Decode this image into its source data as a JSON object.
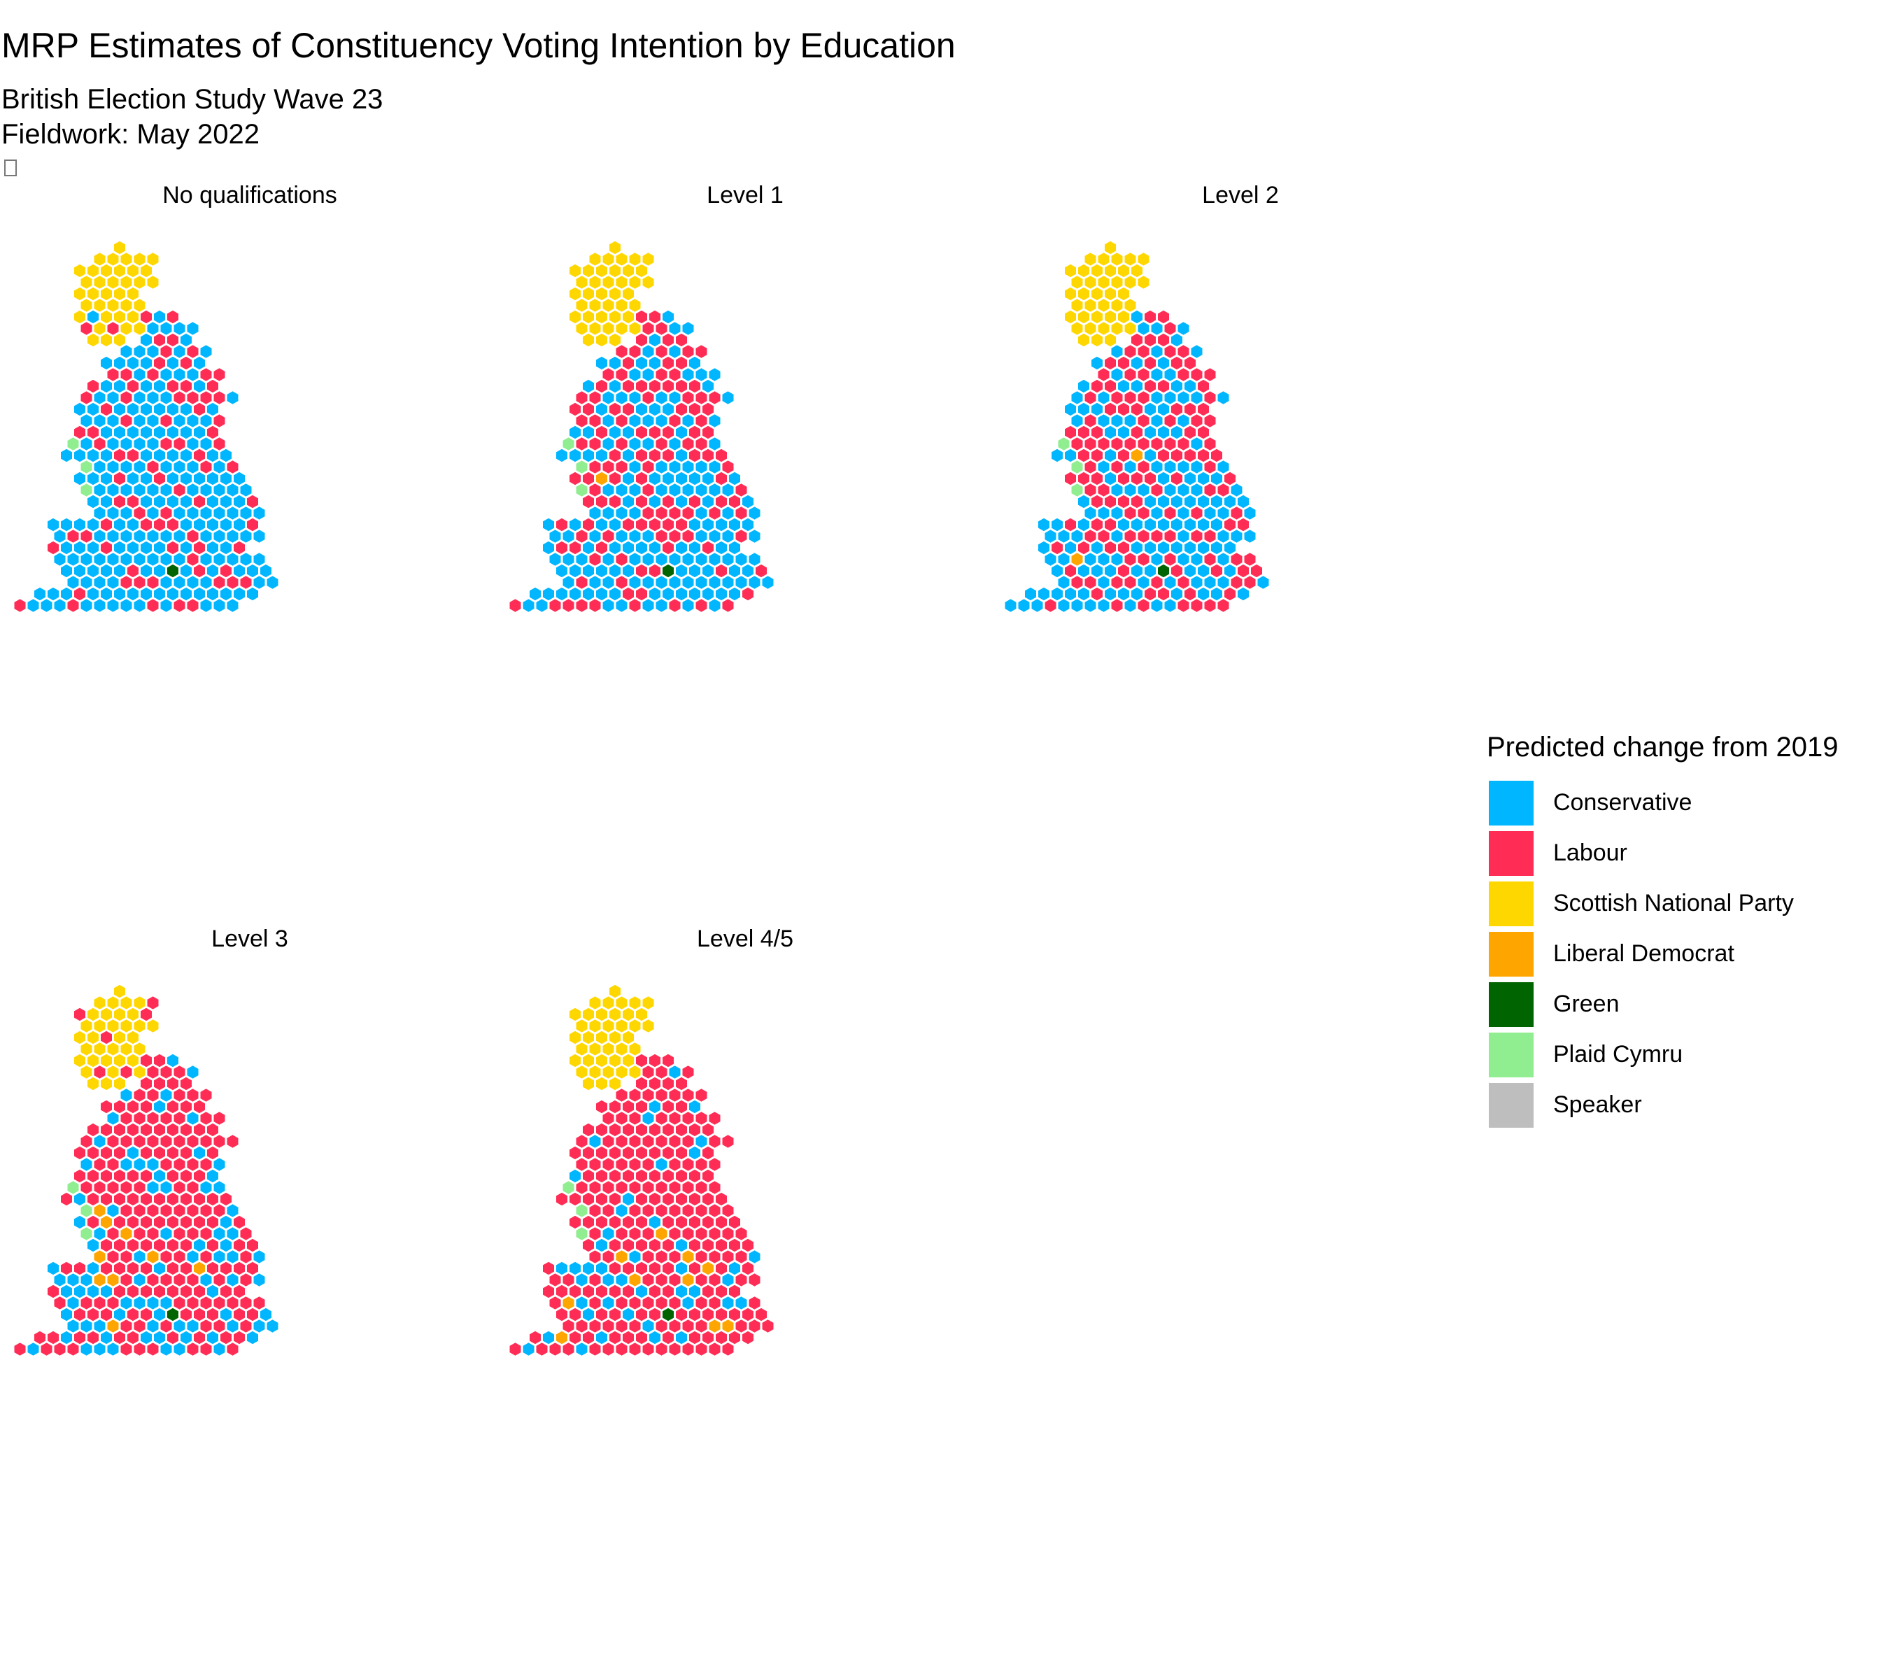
{
  "title": "MRP Estimates of Constituency Voting Intention by Education",
  "subtitle_line1": "British Election Study Wave 23",
  "subtitle_line2": "Fieldwork: May 2022",
  "legend": {
    "title": "Predicted change from 2019",
    "entries": [
      {
        "party": "Conservative",
        "color": "#00B6FF"
      },
      {
        "party": "Labour",
        "color": "#FF2D55"
      },
      {
        "party": "Scottish National Party",
        "color": "#FFD700"
      },
      {
        "party": "Liberal Democrat",
        "color": "#FFA500"
      },
      {
        "party": "Green",
        "color": "#006400"
      },
      {
        "party": "Plaid Cymru",
        "color": "#90EE90"
      },
      {
        "party": "Speaker",
        "color": "#BEBEBE"
      }
    ]
  },
  "panels": [
    {
      "label": "No qualifications",
      "labour_share": 0.3,
      "libdem_share": 0.0,
      "scotland_labour_share": 0.04,
      "green_seats": 1,
      "plaid_seats": 3
    },
    {
      "label": "Level 1",
      "labour_share": 0.48,
      "libdem_share": 0.01,
      "scotland_labour_share": 0.0,
      "green_seats": 1,
      "plaid_seats": 4
    },
    {
      "label": "Level 2",
      "labour_share": 0.52,
      "libdem_share": 0.01,
      "scotland_labour_share": 0.02,
      "green_seats": 1,
      "plaid_seats": 4
    },
    {
      "label": "Level 3",
      "labour_share": 0.7,
      "libdem_share": 0.02,
      "scotland_labour_share": 0.12,
      "green_seats": 1,
      "plaid_seats": 3
    },
    {
      "label": "Level 4/5",
      "labour_share": 0.9,
      "libdem_share": 0.05,
      "scotland_labour_share": 0.0,
      "green_seats": 1,
      "plaid_seats": 3
    }
  ]
}
